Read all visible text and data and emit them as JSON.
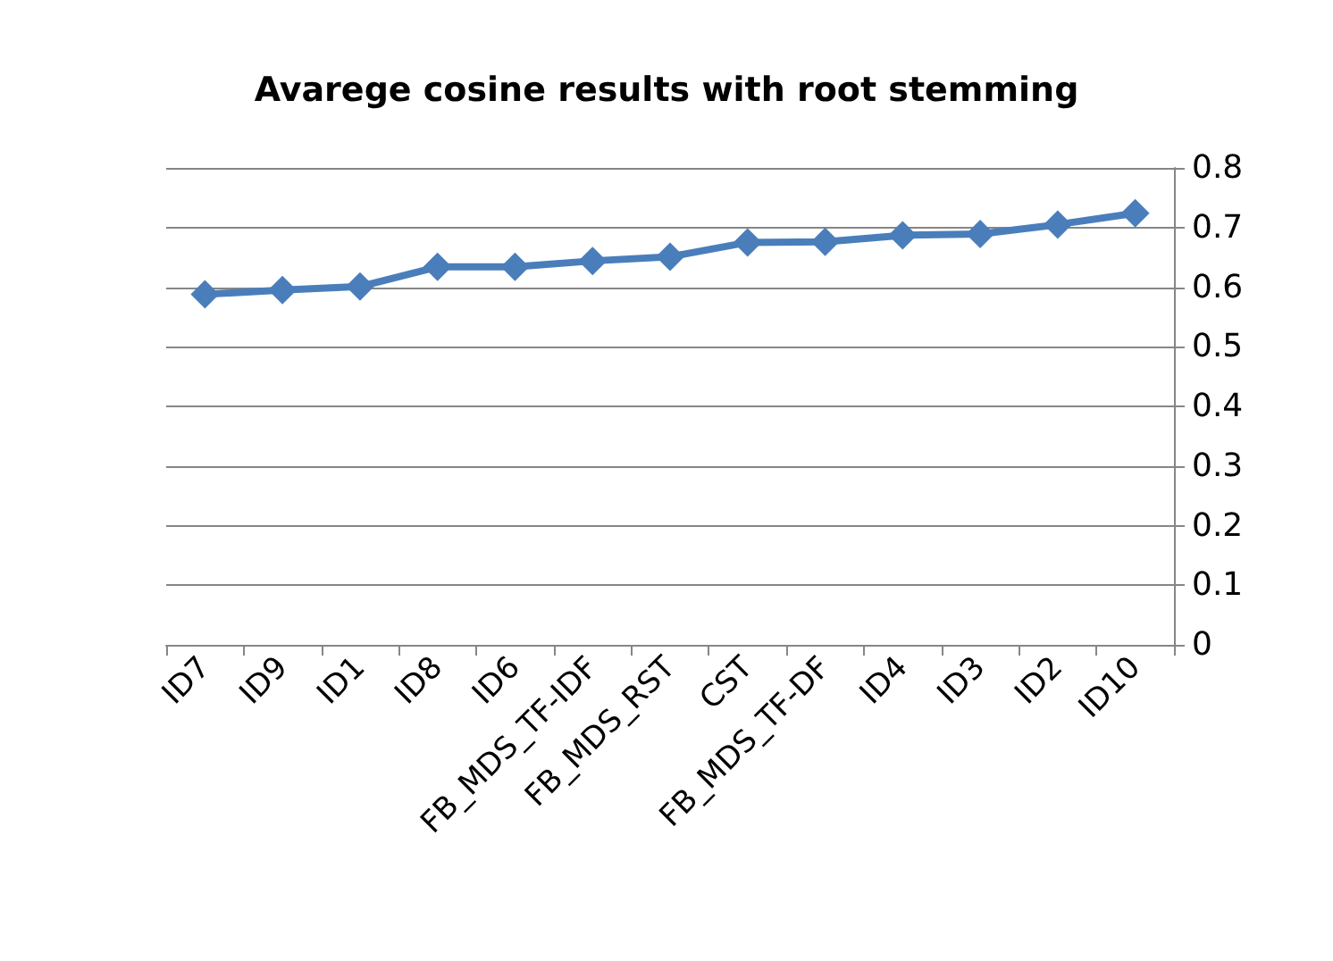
{
  "chart_data": {
    "type": "line",
    "title": "Avarege cosine results with root stemming",
    "categories": [
      "ID7",
      "ID9",
      "ID1",
      "ID8",
      "ID6",
      "FB_MDS_TF-IDF",
      "FB_MDS_RST",
      "CST",
      "FB_MDS_TF-DF",
      "ID4",
      "ID3",
      "ID2",
      "ID10"
    ],
    "series": [
      {
        "color": "#4a7ebb",
        "values": [
          0.588,
          0.595,
          0.601,
          0.634,
          0.634,
          0.644,
          0.651,
          0.675,
          0.676,
          0.687,
          0.689,
          0.705,
          0.724
        ]
      }
    ],
    "ylim": [
      0,
      0.8
    ],
    "yticks": [
      0,
      0.1,
      0.2,
      0.3,
      0.4,
      0.5,
      0.6,
      0.7,
      0.8
    ],
    "grid": "y",
    "marker": "diamond",
    "line_style": "solid"
  }
}
